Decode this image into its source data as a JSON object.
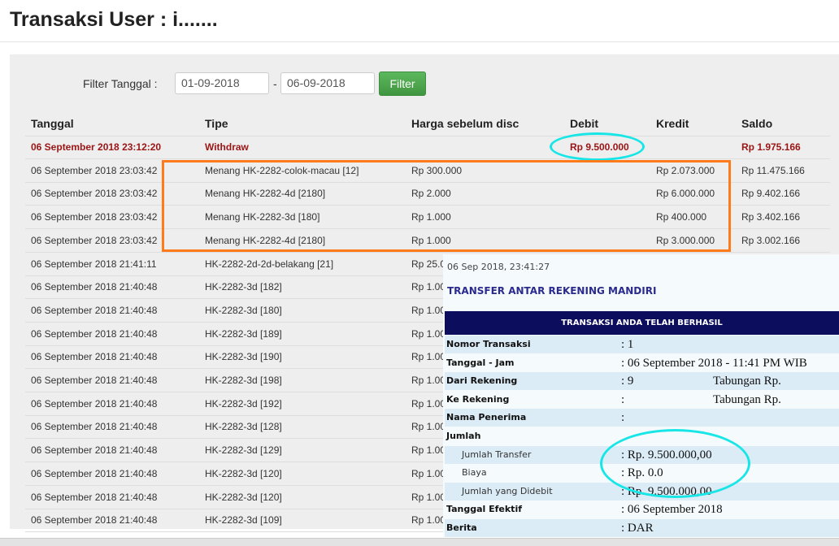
{
  "page": {
    "title": "Transaksi User : i......."
  },
  "filter": {
    "label": "Filter Tanggal :",
    "from": "01-09-2018",
    "separator": "-",
    "to": "06-09-2018",
    "button": "Filter"
  },
  "table": {
    "headers": [
      "Tanggal",
      "Tipe",
      "Harga sebelum disc",
      "Debit",
      "Kredit",
      "Saldo"
    ],
    "rows": [
      {
        "tanggal": "06 September 2018 23:12:20",
        "tipe": "Withdraw",
        "harga": "",
        "debit": "Rp 9.500.000",
        "kredit": "",
        "saldo": "Rp 1.975.166",
        "highlight": true
      },
      {
        "tanggal": "06 September 2018 23:03:42",
        "tipe": "Menang HK-2282-colok-macau [12]",
        "harga": "Rp 300.000",
        "debit": "",
        "kredit": "Rp 2.073.000",
        "saldo": "Rp 11.475.166"
      },
      {
        "tanggal": "06 September 2018 23:03:42",
        "tipe": "Menang HK-2282-4d [2180]",
        "harga": "Rp 2.000",
        "debit": "",
        "kredit": "Rp 6.000.000",
        "saldo": "Rp 9.402.166"
      },
      {
        "tanggal": "06 September 2018 23:03:42",
        "tipe": "Menang HK-2282-3d [180]",
        "harga": "Rp 1.000",
        "debit": "",
        "kredit": "Rp 400.000",
        "saldo": "Rp 3.402.166"
      },
      {
        "tanggal": "06 September 2018 23:03:42",
        "tipe": "Menang HK-2282-4d [2180]",
        "harga": "Rp 1.000",
        "debit": "",
        "kredit": "Rp 3.000.000",
        "saldo": "Rp 3.002.166"
      },
      {
        "tanggal": "06 September 2018 21:41:11",
        "tipe": "HK-2282-2d-2d-belakang [21]",
        "harga": "Rp 25.0"
      },
      {
        "tanggal": "06 September 2018 21:40:48",
        "tipe": "HK-2282-3d [182]",
        "harga": "Rp 1.00"
      },
      {
        "tanggal": "06 September 2018 21:40:48",
        "tipe": "HK-2282-3d [180]",
        "harga": "Rp 1.00"
      },
      {
        "tanggal": "06 September 2018 21:40:48",
        "tipe": "HK-2282-3d [189]",
        "harga": "Rp 1.00"
      },
      {
        "tanggal": "06 September 2018 21:40:48",
        "tipe": "HK-2282-3d [190]",
        "harga": "Rp 1.00"
      },
      {
        "tanggal": "06 September 2018 21:40:48",
        "tipe": "HK-2282-3d [198]",
        "harga": "Rp 1.00"
      },
      {
        "tanggal": "06 September 2018 21:40:48",
        "tipe": "HK-2282-3d [192]",
        "harga": "Rp 1.00"
      },
      {
        "tanggal": "06 September 2018 21:40:48",
        "tipe": "HK-2282-3d [128]",
        "harga": "Rp 1.00"
      },
      {
        "tanggal": "06 September 2018 21:40:48",
        "tipe": "HK-2282-3d [129]",
        "harga": "Rp 1.00"
      },
      {
        "tanggal": "06 September 2018 21:40:48",
        "tipe": "HK-2282-3d [120]",
        "harga": "Rp 1.00"
      },
      {
        "tanggal": "06 September 2018 21:40:48",
        "tipe": "HK-2282-3d [120]",
        "harga": "Rp 1.00"
      },
      {
        "tanggal": "06 September 2018 21:40:48",
        "tipe": "HK-2282-3d [109]",
        "harga": "Rp 1.00"
      }
    ]
  },
  "receipt": {
    "datetime": "06 Sep 2018, 23:41:27",
    "title": "TRANSFER ANTAR REKENING MANDIRI",
    "banner": "TRANSAKSI ANDA TELAH BERHASIL",
    "rows": [
      {
        "label": "Nomor Transaksi",
        "value": ": 1",
        "alt": true
      },
      {
        "label": "Tanggal - Jam",
        "value": ": 06 September 2018 - 11:41 PM WIB"
      },
      {
        "label": "Dari Rekening",
        "value": ": 9",
        "extra": "Tabungan  Rp.",
        "alt": true
      },
      {
        "label": "Ke Rekening",
        "value": ":",
        "extra": "Tabungan Rp."
      },
      {
        "label": "Nama Penerima",
        "value": ":",
        "alt": true
      },
      {
        "label": "Jumlah",
        "value": ""
      },
      {
        "label": "Jumlah Transfer",
        "value": ": Rp. 9.500.000,00",
        "sub": true,
        "alt": true
      },
      {
        "label": "Biaya",
        "value": ": Rp. 0.0",
        "sub": true
      },
      {
        "label": "Jumlah yang Didebit",
        "value": ": Rp. 9.500.000,00",
        "sub": true,
        "alt": true
      },
      {
        "label": "Tanggal Efektif",
        "value": ": 06 September 2018"
      },
      {
        "label": "Berita",
        "value": ": DAR",
        "alt": true
      }
    ]
  },
  "colors": {
    "highlight_text": "#9b1414",
    "annotation_cyan": "#18e6e6",
    "annotation_orange": "#ff7a1a",
    "banner": "#0d0d5e",
    "button": "#5cb85c"
  }
}
